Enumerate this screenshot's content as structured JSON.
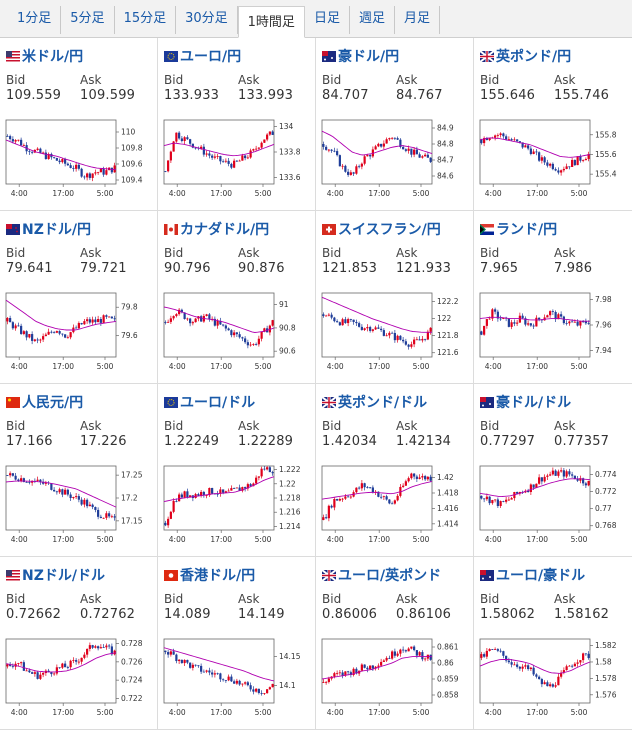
{
  "tabs": [
    {
      "label": "1分足",
      "active": false
    },
    {
      "label": "5分足",
      "active": false
    },
    {
      "label": "15分足",
      "active": false
    },
    {
      "label": "30分足",
      "active": false
    },
    {
      "label": "1時間足",
      "active": true
    },
    {
      "label": "日足",
      "active": false
    },
    {
      "label": "週足",
      "active": false
    },
    {
      "label": "月足",
      "active": false
    }
  ],
  "labels": {
    "bid": "Bid",
    "ask": "Ask"
  },
  "x_ticks": [
    "4:00",
    "17:00",
    "5:00"
  ],
  "colors": {
    "up": "#e0001b",
    "down": "#1f3d99",
    "ma": "#b000b0",
    "ma2": "#2a8fd0",
    "link": "#1a5aa8"
  },
  "pairs": [
    {
      "name": "米ドル/円",
      "flag": "us",
      "bid": "109.559",
      "ask": "109.599",
      "yticks": [
        "110",
        "109.8",
        "109.6",
        "109.4"
      ],
      "ylim": [
        109.35,
        110.15
      ],
      "trend": [
        109.95,
        109.9,
        109.8,
        109.75,
        109.7,
        109.65,
        109.6,
        109.55,
        109.45,
        109.5,
        109.5,
        109.55
      ],
      "ma": [
        109.9,
        109.85,
        109.8,
        109.75,
        109.72,
        109.7,
        109.66,
        109.62,
        109.58,
        109.55,
        109.54,
        109.53
      ]
    },
    {
      "name": "ユーロ/円",
      "flag": "eu",
      "bid": "133.933",
      "ask": "133.993",
      "yticks": [
        "134",
        "133.8",
        "133.6"
      ],
      "ylim": [
        133.55,
        134.05
      ],
      "trend": [
        133.65,
        133.95,
        133.9,
        133.85,
        133.8,
        133.75,
        133.72,
        133.7,
        133.75,
        133.8,
        133.9,
        133.95
      ],
      "ma": [
        133.85,
        133.87,
        133.86,
        133.84,
        133.82,
        133.8,
        133.78,
        133.77,
        133.78,
        133.8,
        133.83,
        133.86
      ]
    },
    {
      "name": "豪ドル/円",
      "flag": "au",
      "bid": "84.707",
      "ask": "84.767",
      "yticks": [
        "84.9",
        "84.8",
        "84.7",
        "84.6"
      ],
      "ylim": [
        84.55,
        84.95
      ],
      "trend": [
        84.8,
        84.75,
        84.65,
        84.6,
        84.7,
        84.75,
        84.8,
        84.85,
        84.8,
        84.75,
        84.72,
        84.7
      ],
      "ma": [
        84.88,
        84.85,
        84.8,
        84.75,
        84.73,
        84.74,
        84.76,
        84.78,
        84.79,
        84.78,
        84.76,
        84.74
      ]
    },
    {
      "name": "英ポンド/円",
      "flag": "gb",
      "bid": "155.646",
      "ask": "155.746",
      "yticks": [
        "155.8",
        "155.6",
        "155.4"
      ],
      "ylim": [
        155.3,
        155.95
      ],
      "trend": [
        155.75,
        155.8,
        155.8,
        155.75,
        155.7,
        155.65,
        155.55,
        155.5,
        155.45,
        155.5,
        155.55,
        155.6
      ],
      "ma": [
        155.75,
        155.77,
        155.76,
        155.74,
        155.72,
        155.7,
        155.66,
        155.62,
        155.58,
        155.57,
        155.58,
        155.6
      ]
    },
    {
      "name": "NZドル/円",
      "flag": "nz",
      "bid": "79.641",
      "ask": "79.721",
      "yticks": [
        "79.8",
        "79.6"
      ],
      "ylim": [
        79.45,
        79.9
      ],
      "trend": [
        79.7,
        79.65,
        79.6,
        79.55,
        79.6,
        79.65,
        79.6,
        79.65,
        79.7,
        79.7,
        79.72,
        79.7
      ],
      "ma": [
        79.85,
        79.8,
        79.75,
        79.7,
        79.67,
        79.65,
        79.64,
        79.64,
        79.66,
        79.68,
        79.69,
        79.7
      ]
    },
    {
      "name": "カナダドル/円",
      "flag": "ca",
      "bid": "90.796",
      "ask": "90.876",
      "yticks": [
        "91",
        "90.8",
        "90.6"
      ],
      "ylim": [
        90.55,
        91.1
      ],
      "trend": [
        90.85,
        90.95,
        90.9,
        90.85,
        90.9,
        90.85,
        90.8,
        90.75,
        90.7,
        90.65,
        90.75,
        90.85
      ],
      "ma": [
        90.98,
        90.96,
        90.93,
        90.9,
        90.88,
        90.87,
        90.85,
        90.82,
        90.79,
        90.76,
        90.77,
        90.8
      ]
    },
    {
      "name": "スイスフラン/円",
      "flag": "ch",
      "bid": "121.853",
      "ask": "121.933",
      "yticks": [
        "122.2",
        "122",
        "121.8",
        "121.6"
      ],
      "ylim": [
        121.55,
        122.3
      ],
      "trend": [
        122.05,
        122.0,
        121.95,
        121.95,
        121.9,
        121.9,
        121.85,
        121.8,
        121.75,
        121.7,
        121.75,
        121.85
      ],
      "ma": [
        122.25,
        122.2,
        122.15,
        122.1,
        122.05,
        122.0,
        121.96,
        121.92,
        121.88,
        121.85,
        121.84,
        121.84
      ]
    },
    {
      "name": "ランド/円",
      "flag": "za",
      "bid": "7.965",
      "ask": "7.986",
      "yticks": [
        "7.98",
        "7.96",
        "7.94"
      ],
      "ylim": [
        7.935,
        7.985
      ],
      "trend": [
        7.955,
        7.97,
        7.965,
        7.96,
        7.965,
        7.96,
        7.965,
        7.97,
        7.965,
        7.962,
        7.96,
        7.963
      ],
      "ma": [
        7.965,
        7.966,
        7.966,
        7.965,
        7.965,
        7.964,
        7.964,
        7.965,
        7.965,
        7.964,
        7.963,
        7.963
      ]
    },
    {
      "name": "人民元/円",
      "flag": "cn",
      "bid": "17.166",
      "ask": "17.226",
      "yticks": [
        "17.25",
        "17.2",
        "17.15"
      ],
      "ylim": [
        17.13,
        17.27
      ],
      "trend": [
        17.25,
        17.245,
        17.24,
        17.235,
        17.23,
        17.22,
        17.21,
        17.2,
        17.19,
        17.17,
        17.16,
        17.15
      ],
      "ma": [
        17.235,
        17.237,
        17.237,
        17.236,
        17.234,
        17.23,
        17.225,
        17.22,
        17.21,
        17.2,
        17.19,
        17.18
      ]
    },
    {
      "name": "ユーロ/ドル",
      "flag": "eu",
      "bid": "1.22249",
      "ask": "1.22289",
      "yticks": [
        "1.222",
        "1.22",
        "1.218",
        "1.216",
        "1.214"
      ],
      "ylim": [
        1.2135,
        1.2225
      ],
      "trend": [
        1.2145,
        1.218,
        1.2185,
        1.2185,
        1.2188,
        1.219,
        1.2185,
        1.219,
        1.2195,
        1.22,
        1.2222,
        1.222
      ],
      "ma": [
        1.2175,
        1.2178,
        1.218,
        1.2182,
        1.2184,
        1.2186,
        1.2187,
        1.2188,
        1.2192,
        1.2198,
        1.2205,
        1.221
      ]
    },
    {
      "name": "英ポンド/ドル",
      "flag": "gb",
      "bid": "1.42034",
      "ask": "1.42134",
      "yticks": [
        "1.42",
        "1.418",
        "1.416",
        "1.414"
      ],
      "ylim": [
        1.4132,
        1.4215
      ],
      "trend": [
        1.4145,
        1.417,
        1.4175,
        1.418,
        1.419,
        1.4185,
        1.4175,
        1.4165,
        1.4185,
        1.4205,
        1.42,
        1.42
      ],
      "ma": [
        1.4172,
        1.4174,
        1.4176,
        1.4178,
        1.418,
        1.4181,
        1.418,
        1.4179,
        1.4182,
        1.4188,
        1.4192,
        1.4195
      ]
    },
    {
      "name": "豪ドル/ドル",
      "flag": "au",
      "bid": "0.77297",
      "ask": "0.77357",
      "yticks": [
        "0.774",
        "0.772",
        "0.77",
        "0.768"
      ],
      "ylim": [
        0.7675,
        0.775
      ],
      "trend": [
        0.7715,
        0.771,
        0.7705,
        0.7712,
        0.772,
        0.7725,
        0.7735,
        0.774,
        0.7742,
        0.774,
        0.7735,
        0.773
      ],
      "ma": [
        0.7718,
        0.7716,
        0.7714,
        0.7715,
        0.7718,
        0.7722,
        0.7726,
        0.773,
        0.7733,
        0.7735,
        0.7735,
        0.7734
      ]
    },
    {
      "name": "NZドル/ドル",
      "flag": "us",
      "bid": "0.72662",
      "ask": "0.72762",
      "yticks": [
        "0.728",
        "0.726",
        "0.724",
        "0.722"
      ],
      "ylim": [
        0.7215,
        0.7285
      ],
      "trend": [
        0.7255,
        0.726,
        0.725,
        0.7245,
        0.7248,
        0.7252,
        0.7255,
        0.726,
        0.727,
        0.728,
        0.7275,
        0.727
      ],
      "ma": [
        0.7258,
        0.7256,
        0.7253,
        0.725,
        0.7249,
        0.7249,
        0.725,
        0.7253,
        0.7258,
        0.7264,
        0.7268,
        0.727
      ]
    },
    {
      "name": "香港ドル/円",
      "flag": "hk",
      "bid": "14.089",
      "ask": "14.149",
      "yticks": [
        "14.15",
        "14.1"
      ],
      "ylim": [
        14.07,
        14.18
      ],
      "trend": [
        14.16,
        14.15,
        14.14,
        14.13,
        14.125,
        14.12,
        14.115,
        14.11,
        14.1,
        14.095,
        14.09,
        14.1
      ],
      "ma": [
        14.165,
        14.16,
        14.155,
        14.15,
        14.145,
        14.14,
        14.135,
        14.13,
        14.125,
        14.118,
        14.112,
        14.108
      ]
    },
    {
      "name": "ユーロ/英ポンド",
      "flag": "gb",
      "bid": "0.86006",
      "ask": "0.86106",
      "yticks": [
        "0.861",
        "0.86",
        "0.859",
        "0.858"
      ],
      "ylim": [
        0.8575,
        0.8615
      ],
      "trend": [
        0.8588,
        0.8592,
        0.8593,
        0.8595,
        0.8597,
        0.8598,
        0.8602,
        0.8605,
        0.861,
        0.8608,
        0.8605,
        0.8603
      ],
      "ma": [
        0.859,
        0.8591,
        0.8592,
        0.8593,
        0.8595,
        0.8596,
        0.8598,
        0.86,
        0.8603,
        0.8604,
        0.8604,
        0.8604
      ]
    },
    {
      "name": "ユーロ/豪ドル",
      "flag": "au",
      "bid": "1.58062",
      "ask": "1.58162",
      "yticks": [
        "1.582",
        "1.58",
        "1.578",
        "1.576"
      ],
      "ylim": [
        1.575,
        1.5828
      ],
      "trend": [
        1.5805,
        1.5815,
        1.581,
        1.58,
        1.5795,
        1.579,
        1.5775,
        1.577,
        1.578,
        1.5795,
        1.5805,
        1.5808
      ],
      "ma": [
        1.5795,
        1.58,
        1.5803,
        1.5803,
        1.5801,
        1.5798,
        1.5792,
        1.5787,
        1.5786,
        1.5789,
        1.5795,
        1.58
      ]
    }
  ]
}
